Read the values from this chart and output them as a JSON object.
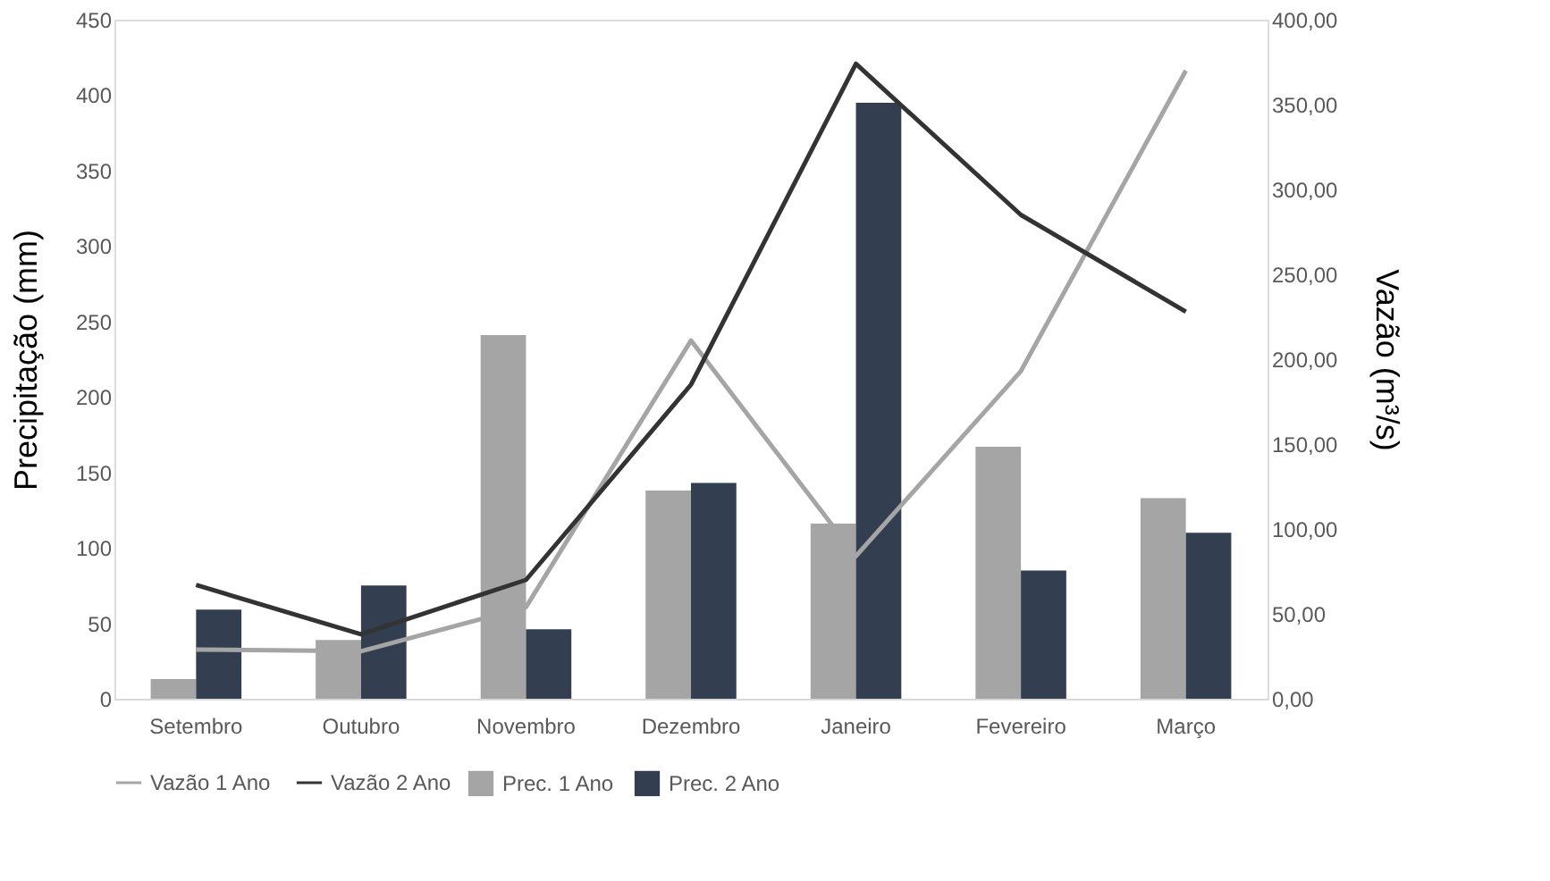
{
  "chart_data": {
    "type": "bar",
    "ylabel": "Precipitação (mm)",
    "y2label": "Vazão (m³/s)",
    "categories": [
      "Setembro",
      "Outubro",
      "Novembro",
      "Dezembro",
      "Janeiro",
      "Fevereiro",
      "Março"
    ],
    "series": [
      {
        "name": "Prec. 1 Ano",
        "color": "#a5a5a5",
        "values": [
          13,
          39,
          241,
          138,
          116,
          167,
          133
        ]
      },
      {
        "name": "Prec. 2 Ano",
        "color": "#333f50",
        "values": [
          59,
          75,
          46,
          143,
          395,
          85,
          110
        ]
      },
      {
        "name": "Vazão 1 Ano",
        "type": "line",
        "axis": "y2",
        "color": "#a5a5a5",
        "values": [
          29,
          28,
          54,
          211,
          84,
          193,
          370
        ]
      },
      {
        "name": "Vazão 2 Ano",
        "type": "line",
        "axis": "y2",
        "color": "#333333",
        "values": [
          67,
          38,
          70,
          185,
          374,
          285,
          228
        ]
      }
    ],
    "ylim": [
      0,
      450
    ],
    "yticks": [
      0,
      50,
      100,
      150,
      200,
      250,
      300,
      350,
      400,
      450
    ],
    "y2lim": [
      0,
      400
    ],
    "y2ticks": [
      {
        "value": 0,
        "label": "0,00"
      },
      {
        "value": 50,
        "label": "50,00"
      },
      {
        "value": 100,
        "label": "100,00"
      },
      {
        "value": 150,
        "label": "150,00"
      },
      {
        "value": 200,
        "label": "200,00"
      },
      {
        "value": 250,
        "label": "250,00"
      },
      {
        "value": 300,
        "label": "300,00"
      },
      {
        "value": 350,
        "label": "350,00"
      },
      {
        "value": 400,
        "label": "400,00"
      }
    ],
    "grid": false,
    "legend": "bottom"
  }
}
